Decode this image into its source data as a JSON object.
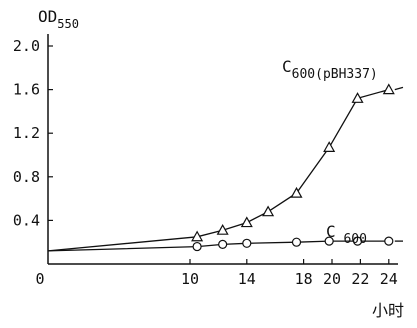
{
  "chart_data": {
    "type": "line",
    "ylabel": "OD",
    "ylabel_sub": "550",
    "xlabel": "小时",
    "xlim": [
      0,
      26
    ],
    "ylim": [
      0,
      2.0
    ],
    "x_ticks": [
      "0",
      "10",
      "14",
      "18",
      "20",
      "22",
      "24"
    ],
    "x_tick_values": [
      0,
      10,
      14,
      18,
      20,
      22,
      24
    ],
    "y_ticks": [
      "0.4",
      "0.8",
      "1.2",
      "1.6",
      "2.0"
    ],
    "y_tick_values": [
      0.4,
      0.8,
      1.2,
      1.6,
      2.0
    ],
    "grid": false,
    "legend": "none",
    "series": [
      {
        "name": "C600(pBH337)",
        "name_main": "C",
        "name_sub": "600(pBH337)",
        "marker": "triangle",
        "x": [
          0,
          10.5,
          12.3,
          14.0,
          15.5,
          17.5,
          19.8,
          21.8,
          24.0
        ],
        "y": [
          0.12,
          0.25,
          0.31,
          0.38,
          0.48,
          0.65,
          1.07,
          1.52,
          1.6
        ],
        "extend_to_x": 25.0,
        "extend_to_y": 1.62
      },
      {
        "name": "C 600",
        "name_main": "C",
        "name_sub": " 600",
        "marker": "circle",
        "x": [
          0,
          10.5,
          12.3,
          14.0,
          17.5,
          19.8,
          21.8,
          24.0
        ],
        "y": [
          0.12,
          0.16,
          0.18,
          0.19,
          0.2,
          0.21,
          0.21,
          0.21
        ],
        "extend_to_x": 25.0,
        "extend_to_y": 0.21
      }
    ]
  }
}
